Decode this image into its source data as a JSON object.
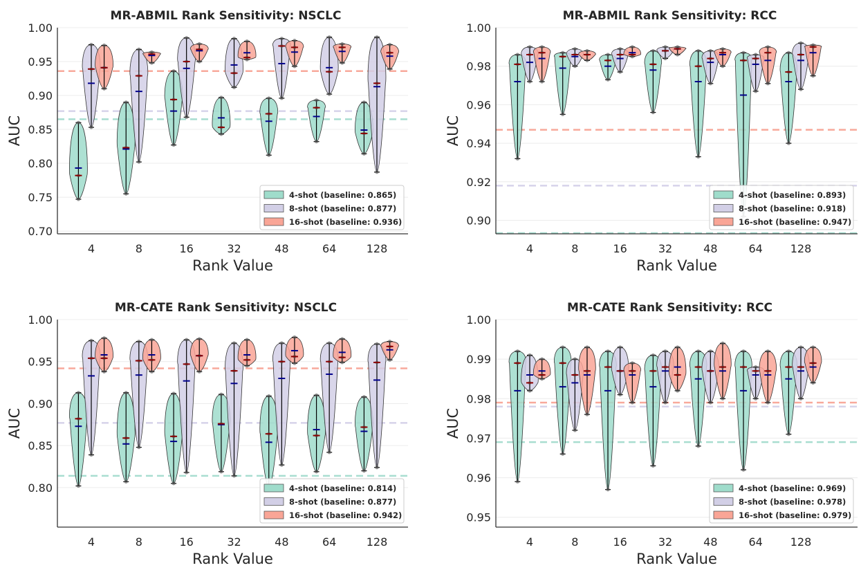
{
  "legend_placement": "lower-right",
  "colors": {
    "4-shot": "#9fdccb",
    "8-shot": "#d2cfe6",
    "16-shot": "#f9a596",
    "mean_marker": "#00008b",
    "median_marker": "#8b0000"
  },
  "chart_data": [
    {
      "type": "violin",
      "title": "MR-ABMIL Rank Sensitivity: NSCLC",
      "xlabel": "Rank Value",
      "ylabel": "AUC",
      "categories": [
        "4",
        "8",
        "16",
        "32",
        "48",
        "64",
        "128"
      ],
      "ylim": [
        0.696,
        1.0
      ],
      "yticks": [
        "0.70",
        "0.75",
        "0.80",
        "0.85",
        "0.90",
        "0.95",
        "1.00"
      ],
      "grid": true,
      "series": [
        {
          "name": "4-shot",
          "legend": "4-shot (baseline: 0.865)",
          "baseline": 0.865,
          "min": [
            0.747,
            0.755,
            0.827,
            0.843,
            0.812,
            0.832,
            0.814
          ],
          "max": [
            0.86,
            0.89,
            0.936,
            0.897,
            0.896,
            0.893,
            0.89
          ],
          "mean": [
            0.793,
            0.821,
            0.877,
            0.867,
            0.862,
            0.869,
            0.849
          ],
          "median": [
            0.782,
            0.823,
            0.894,
            0.853,
            0.873,
            0.882,
            0.844
          ]
        },
        {
          "name": "8-shot",
          "legend": "8-shot (baseline: 0.877)",
          "baseline": 0.877,
          "min": [
            0.853,
            0.802,
            0.868,
            0.912,
            0.896,
            0.902,
            0.787
          ],
          "max": [
            0.975,
            0.968,
            0.985,
            0.984,
            0.984,
            0.986,
            0.986
          ],
          "mean": [
            0.918,
            0.906,
            0.94,
            0.945,
            0.947,
            0.941,
            0.913
          ],
          "median": [
            0.939,
            0.929,
            0.95,
            0.933,
            0.973,
            0.935,
            0.918
          ]
        },
        {
          "name": "16-shot",
          "legend": "16-shot (baseline: 0.936)",
          "baseline": 0.936,
          "min": [
            0.91,
            0.948,
            0.95,
            0.953,
            0.943,
            0.948,
            0.939
          ],
          "max": [
            0.974,
            0.964,
            0.976,
            0.98,
            0.981,
            0.976,
            0.975
          ],
          "mean": [
            0.941,
            0.959,
            0.966,
            0.963,
            0.964,
            0.965,
            0.958
          ],
          "median": [
            0.941,
            0.961,
            0.968,
            0.956,
            0.971,
            0.971,
            0.963
          ]
        }
      ]
    },
    {
      "type": "violin",
      "title": "MR-ABMIL Rank Sensitivity: RCC",
      "xlabel": "Rank Value",
      "ylabel": "AUC",
      "categories": [
        "4",
        "8",
        "16",
        "32",
        "48",
        "64",
        "128"
      ],
      "ylim": [
        0.893,
        1.0
      ],
      "yticks": [
        "0.90",
        "0.92",
        "0.94",
        "0.96",
        "0.98",
        "1.00"
      ],
      "grid": true,
      "series": [
        {
          "name": "4-shot",
          "legend": "4-shot (baseline: 0.893)",
          "baseline": 0.893,
          "min": [
            0.932,
            0.955,
            0.973,
            0.956,
            0.933,
            0.902,
            0.94
          ],
          "max": [
            0.986,
            0.987,
            0.986,
            0.988,
            0.988,
            0.987,
            0.987
          ],
          "mean": [
            0.972,
            0.979,
            0.98,
            0.978,
            0.972,
            0.965,
            0.972
          ],
          "median": [
            0.981,
            0.985,
            0.983,
            0.981,
            0.98,
            0.983,
            0.977
          ]
        },
        {
          "name": "8-shot",
          "legend": "8-shot (baseline: 0.918)",
          "baseline": 0.918,
          "min": [
            0.972,
            0.98,
            0.977,
            0.984,
            0.971,
            0.967,
            0.968
          ],
          "max": [
            0.99,
            0.989,
            0.989,
            0.99,
            0.988,
            0.986,
            0.992
          ],
          "mean": [
            0.982,
            0.985,
            0.984,
            0.988,
            0.982,
            0.981,
            0.983
          ],
          "median": [
            0.986,
            0.986,
            0.986,
            0.988,
            0.984,
            0.984,
            0.986
          ]
        },
        {
          "name": "16-shot",
          "legend": "16-shot (baseline: 0.947)",
          "baseline": 0.947,
          "min": [
            0.972,
            0.983,
            0.985,
            0.986,
            0.98,
            0.971,
            0.975
          ],
          "max": [
            0.99,
            0.988,
            0.99,
            0.99,
            0.989,
            0.99,
            0.991
          ],
          "mean": [
            0.984,
            0.986,
            0.987,
            0.989,
            0.986,
            0.983,
            0.987
          ],
          "median": [
            0.987,
            0.986,
            0.986,
            0.989,
            0.987,
            0.987,
            0.99
          ]
        }
      ]
    },
    {
      "type": "violin",
      "title": "MR-CATE Rank Sensitivity: NSCLC",
      "xlabel": "Rank Value",
      "ylabel": "AUC",
      "categories": [
        "4",
        "8",
        "16",
        "32",
        "48",
        "64",
        "128"
      ],
      "ylim": [
        0.753,
        1.0
      ],
      "yticks": [
        "0.80",
        "0.85",
        "0.90",
        "0.95",
        "1.00"
      ],
      "grid": true,
      "series": [
        {
          "name": "4-shot",
          "legend": "4-shot (baseline: 0.814)",
          "baseline": 0.814,
          "min": [
            0.802,
            0.807,
            0.805,
            0.819,
            0.8,
            0.819,
            0.82
          ],
          "max": [
            0.913,
            0.913,
            0.912,
            0.911,
            0.909,
            0.91,
            0.908
          ],
          "mean": [
            0.873,
            0.852,
            0.855,
            0.875,
            0.854,
            0.869,
            0.867
          ],
          "median": [
            0.882,
            0.859,
            0.861,
            0.876,
            0.864,
            0.862,
            0.872
          ]
        },
        {
          "name": "8-shot",
          "legend": "8-shot (baseline: 0.877)",
          "baseline": 0.877,
          "min": [
            0.839,
            0.848,
            0.818,
            0.814,
            0.827,
            0.842,
            0.824
          ],
          "max": [
            0.975,
            0.974,
            0.976,
            0.972,
            0.972,
            0.972,
            0.971
          ],
          "mean": [
            0.933,
            0.934,
            0.927,
            0.924,
            0.93,
            0.935,
            0.928
          ],
          "median": [
            0.954,
            0.951,
            0.947,
            0.939,
            0.95,
            0.95,
            0.949
          ]
        },
        {
          "name": "16-shot",
          "legend": "16-shot (baseline: 0.942)",
          "baseline": 0.942,
          "min": [
            0.938,
            0.938,
            0.938,
            0.945,
            0.948,
            0.949,
            0.952
          ],
          "max": [
            0.978,
            0.976,
            0.977,
            0.976,
            0.979,
            0.977,
            0.974
          ],
          "mean": [
            0.958,
            0.958,
            0.957,
            0.958,
            0.963,
            0.961,
            0.964
          ],
          "median": [
            0.954,
            0.952,
            0.957,
            0.952,
            0.956,
            0.955,
            0.968
          ]
        }
      ]
    },
    {
      "type": "violin",
      "title": "MR-CATE Rank Sensitivity: RCC",
      "xlabel": "Rank Value",
      "ylabel": "AUC",
      "categories": [
        "4",
        "8",
        "16",
        "32",
        "48",
        "64",
        "128"
      ],
      "ylim": [
        0.9475,
        1.0
      ],
      "yticks": [
        "0.95",
        "0.96",
        "0.97",
        "0.98",
        "0.99",
        "1.00"
      ],
      "grid": true,
      "series": [
        {
          "name": "4-shot",
          "legend": "4-shot (baseline: 0.969)",
          "baseline": 0.969,
          "min": [
            0.959,
            0.966,
            0.957,
            0.963,
            0.968,
            0.962,
            0.971
          ],
          "max": [
            0.992,
            0.993,
            0.992,
            0.991,
            0.992,
            0.992,
            0.992
          ],
          "mean": [
            0.982,
            0.983,
            0.982,
            0.983,
            0.985,
            0.982,
            0.985
          ],
          "median": [
            0.989,
            0.989,
            0.988,
            0.987,
            0.988,
            0.988,
            0.988
          ]
        },
        {
          "name": "8-shot",
          "legend": "8-shot (baseline: 0.978)",
          "baseline": 0.978,
          "min": [
            0.982,
            0.972,
            0.981,
            0.979,
            0.979,
            0.98,
            0.98
          ],
          "max": [
            0.991,
            0.99,
            0.993,
            0.992,
            0.992,
            0.988,
            0.993
          ],
          "mean": [
            0.986,
            0.984,
            0.987,
            0.987,
            0.987,
            0.986,
            0.987
          ],
          "median": [
            0.984,
            0.986,
            0.987,
            0.988,
            0.987,
            0.987,
            0.988
          ]
        },
        {
          "name": "16-shot",
          "legend": "16-shot (baseline: 0.979)",
          "baseline": 0.979,
          "min": [
            0.985,
            0.976,
            0.979,
            0.982,
            0.98,
            0.979,
            0.984
          ],
          "max": [
            0.99,
            0.993,
            0.989,
            0.993,
            0.994,
            0.992,
            0.993
          ],
          "mean": [
            0.987,
            0.986,
            0.986,
            0.988,
            0.987,
            0.986,
            0.988
          ],
          "median": [
            0.986,
            0.987,
            0.987,
            0.986,
            0.988,
            0.987,
            0.989
          ]
        }
      ]
    }
  ]
}
